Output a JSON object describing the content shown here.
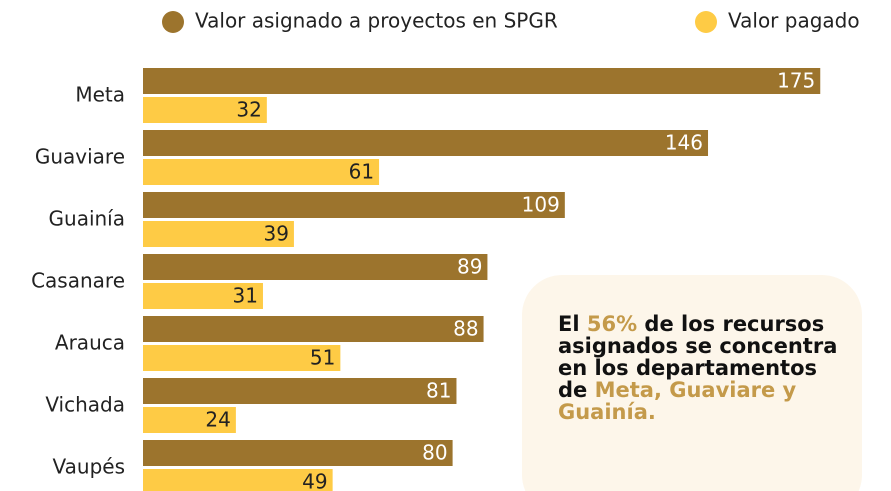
{
  "chart_data": {
    "type": "bar",
    "orientation": "horizontal",
    "categories": [
      "Meta",
      "Guaviare",
      "Guainía",
      "Casanare",
      "Arauca",
      "Vichada",
      "Vaupés"
    ],
    "series": [
      {
        "name": "Valor asignado a proyectos en SPGR",
        "color": "#9c742d",
        "label_color": "#ffffff",
        "values": [
          175,
          146,
          109,
          89,
          88,
          81,
          80
        ]
      },
      {
        "name": "Valor pagado",
        "color": "#fecb45",
        "label_color": "#222222",
        "values": [
          32,
          61,
          39,
          31,
          51,
          24,
          49
        ]
      }
    ],
    "legend": "top",
    "annotation": [
      {
        "text": "El ",
        "color": "#111111"
      },
      {
        "text": "56%",
        "color": "#c49a4a"
      },
      {
        "text": " de los recursos asignados se concentra en los departamentos de ",
        "color": "#111111"
      },
      {
        "text": "Meta,  Guaviare y Guainía.",
        "color": "#c49a4a"
      }
    ]
  }
}
